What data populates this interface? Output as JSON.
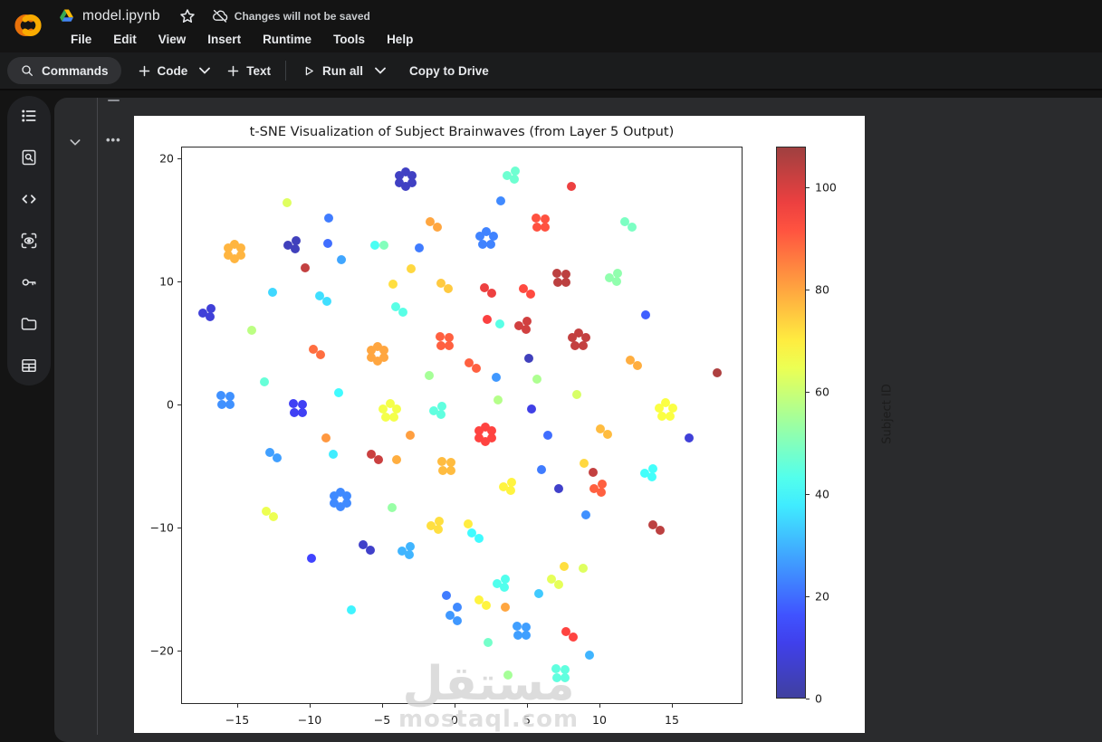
{
  "app": {
    "topbar": {
      "logo": "colab-logo",
      "filename": "model.ipynb",
      "status": "Changes will not be saved",
      "menus": [
        "File",
        "Edit",
        "View",
        "Insert",
        "Runtime",
        "Tools",
        "Help"
      ]
    },
    "toolbar": {
      "commands_label": "Commands",
      "add_code_label": "Code",
      "add_text_label": "Text",
      "run_all_label": "Run all",
      "copy_to_drive_label": "Copy to Drive"
    },
    "sidebar_icons": [
      "table-of-contents",
      "find-and-replace",
      "code-snippets",
      "variable-inspector",
      "secrets",
      "files",
      "data-table"
    ],
    "cell": {
      "more_actions": "•••"
    },
    "watermark": {
      "arabic": "مستقل",
      "latin": "mostaql.com"
    }
  },
  "chart_data": {
    "type": "scatter",
    "title": "t-SNE Visualization of Subject Brainwaves (from Layer 5 Output)",
    "xlabel": "",
    "ylabel": "",
    "xlim": [
      -18.9,
      19.9
    ],
    "ylim": [
      -24.3,
      20.9
    ],
    "xticks": [
      -15,
      -10,
      -5,
      0,
      5,
      10,
      15
    ],
    "yticks": [
      20,
      10,
      0,
      -10,
      -20
    ],
    "grid": false,
    "colorbar": {
      "label": "Subject ID",
      "ticks": [
        0,
        20,
        40,
        60,
        80,
        100
      ],
      "vmin": 0,
      "vmax": 108,
      "colormap": "jet",
      "alpha": 0.75
    },
    "clusters_format": [
      "x",
      "y",
      "subject_id",
      "count"
    ],
    "clusters": [
      [
        -3.4,
        18.3,
        5,
        6
      ],
      [
        -11.6,
        16.5,
        63,
        1
      ],
      [
        -8.8,
        15.2,
        22,
        1
      ],
      [
        -1.5,
        14.8,
        80,
        2
      ],
      [
        -15.3,
        12.5,
        78,
        6
      ],
      [
        -11.2,
        13.0,
        4,
        3
      ],
      [
        -8.8,
        13.2,
        20,
        1
      ],
      [
        -5.6,
        13.0,
        42,
        1
      ],
      [
        -4.9,
        13.1,
        50,
        1
      ],
      [
        -2.5,
        12.8,
        22,
        1
      ],
      [
        -7.8,
        11.8,
        28,
        1
      ],
      [
        -10.4,
        11.2,
        103,
        1
      ],
      [
        -3.1,
        11.1,
        73,
        1
      ],
      [
        -4.3,
        9.9,
        72,
        1
      ],
      [
        -0.8,
        9.7,
        75,
        2
      ],
      [
        -12.6,
        9.1,
        35,
        1
      ],
      [
        -9.1,
        8.7,
        36,
        2
      ],
      [
        -3.9,
        7.8,
        44,
        2
      ],
      [
        -17.1,
        7.6,
        8,
        3
      ],
      [
        -14.1,
        6.1,
        58,
        1
      ],
      [
        -9.5,
        4.3,
        88,
        2
      ],
      [
        -5.4,
        4.2,
        80,
        6
      ],
      [
        -0.8,
        5.2,
        90,
        4
      ],
      [
        -1.8,
        2.5,
        55,
        1
      ],
      [
        -13.2,
        1.9,
        46,
        1
      ],
      [
        -15.8,
        0.4,
        25,
        4
      ],
      [
        -10.9,
        -0.2,
        12,
        4
      ],
      [
        -8.1,
        1.0,
        40,
        1
      ],
      [
        -4.5,
        -0.4,
        66,
        5
      ],
      [
        -1.2,
        -0.4,
        45,
        3
      ],
      [
        3.9,
        18.7,
        47,
        3
      ],
      [
        8.0,
        17.8,
        97,
        1
      ],
      [
        3.1,
        16.6,
        24,
        1
      ],
      [
        5.9,
        14.9,
        92,
        4
      ],
      [
        11.9,
        14.7,
        49,
        2
      ],
      [
        2.2,
        13.5,
        23,
        5
      ],
      [
        7.3,
        10.4,
        104,
        4
      ],
      [
        10.9,
        10.4,
        52,
        3
      ],
      [
        2.3,
        9.4,
        97,
        2
      ],
      [
        4.9,
        9.3,
        93,
        2
      ],
      [
        13.2,
        7.3,
        18,
        1
      ],
      [
        2.2,
        7.0,
        95,
        1
      ],
      [
        3.0,
        6.6,
        44,
        1
      ],
      [
        4.7,
        6.6,
        101,
        3
      ],
      [
        8.5,
        5.3,
        103,
        5
      ],
      [
        5.1,
        3.8,
        4,
        1
      ],
      [
        12.3,
        3.5,
        79,
        2
      ],
      [
        18.0,
        2.6,
        106,
        1
      ],
      [
        1.2,
        3.3,
        90,
        2
      ],
      [
        2.8,
        2.3,
        26,
        1
      ],
      [
        5.7,
        2.1,
        56,
        1
      ],
      [
        8.4,
        0.9,
        62,
        1
      ],
      [
        2.9,
        0.4,
        57,
        1
      ],
      [
        5.3,
        -0.2,
        10,
        1
      ],
      [
        14.5,
        -0.4,
        67,
        5
      ],
      [
        -8.9,
        -2.7,
        82,
        1
      ],
      [
        -3.1,
        -2.4,
        81,
        1
      ],
      [
        -12.6,
        -4.1,
        27,
        2
      ],
      [
        -8.4,
        -3.9,
        38,
        1
      ],
      [
        -5.6,
        -4.2,
        102,
        2
      ],
      [
        -4.0,
        -4.5,
        79,
        1
      ],
      [
        -0.6,
        -4.9,
        77,
        4
      ],
      [
        -8.0,
        -7.7,
        24,
        6
      ],
      [
        -12.8,
        -8.8,
        65,
        2
      ],
      [
        -4.4,
        -8.3,
        53,
        1
      ],
      [
        -1.3,
        -9.8,
        72,
        3
      ],
      [
        -6.1,
        -11.5,
        6,
        2
      ],
      [
        -3.4,
        -11.8,
        30,
        3
      ],
      [
        -9.9,
        -12.4,
        14,
        1
      ],
      [
        -7.2,
        -16.6,
        39,
        1
      ],
      [
        -0.6,
        -15.5,
        22,
        1
      ],
      [
        0.1,
        -16.4,
        24,
        1
      ],
      [
        -0.2,
        -17.3,
        26,
        2
      ],
      [
        2.1,
        -2.3,
        94,
        6
      ],
      [
        10.2,
        -2.1,
        77,
        2
      ],
      [
        6.4,
        -2.5,
        20,
        1
      ],
      [
        16.1,
        -2.6,
        8,
        1
      ],
      [
        8.8,
        -4.7,
        73,
        1
      ],
      [
        9.5,
        -5.4,
        103,
        1
      ],
      [
        5.9,
        -5.2,
        22,
        1
      ],
      [
        13.4,
        -5.5,
        41,
        3
      ],
      [
        3.6,
        -6.5,
        69,
        3
      ],
      [
        7.1,
        -6.8,
        6,
        1
      ],
      [
        9.9,
        -6.6,
        90,
        3
      ],
      [
        9.0,
        -8.9,
        25,
        1
      ],
      [
        13.9,
        -10.0,
        104,
        2
      ],
      [
        0.9,
        -9.6,
        70,
        1
      ],
      [
        1.3,
        -10.6,
        40,
        2
      ],
      [
        7.5,
        -13.0,
        72,
        1
      ],
      [
        8.8,
        -13.2,
        63,
        1
      ],
      [
        6.9,
        -14.4,
        64,
        2
      ],
      [
        3.2,
        -14.4,
        43,
        3
      ],
      [
        5.7,
        -15.3,
        33,
        1
      ],
      [
        1.9,
        -16.0,
        69,
        2
      ],
      [
        3.4,
        -16.4,
        80,
        1
      ],
      [
        4.6,
        -18.4,
        27,
        4
      ],
      [
        7.9,
        -18.6,
        94,
        2
      ],
      [
        2.2,
        -19.3,
        48,
        1
      ],
      [
        9.3,
        -20.2,
        30,
        1
      ],
      [
        7.2,
        -21.8,
        45,
        4
      ],
      [
        3.7,
        -22.0,
        55,
        1
      ]
    ]
  }
}
